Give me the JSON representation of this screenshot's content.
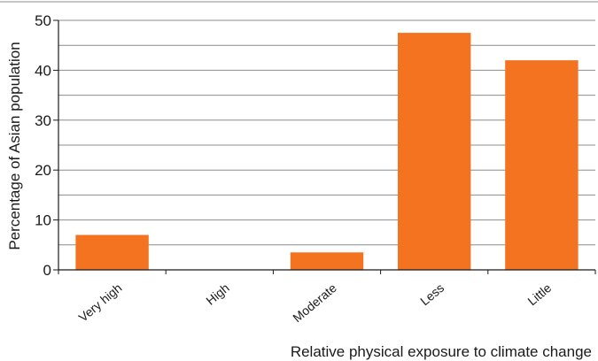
{
  "chart_data": {
    "type": "bar",
    "categories": [
      "Very high",
      "High",
      "Moderate",
      "Less",
      "Little"
    ],
    "values": [
      7,
      0,
      3.5,
      47.5,
      42
    ],
    "title": "",
    "xlabel": "Relative physical exposure to climate change",
    "ylabel": "Percentage of Asian population",
    "ylim": [
      0,
      50
    ],
    "yticks": [
      0,
      10,
      20,
      30,
      40,
      50
    ],
    "grid": "horizontal",
    "minor_grid": true,
    "legend": "none",
    "bar_color": "#f47321",
    "grid_color": "#8c8c8c"
  }
}
